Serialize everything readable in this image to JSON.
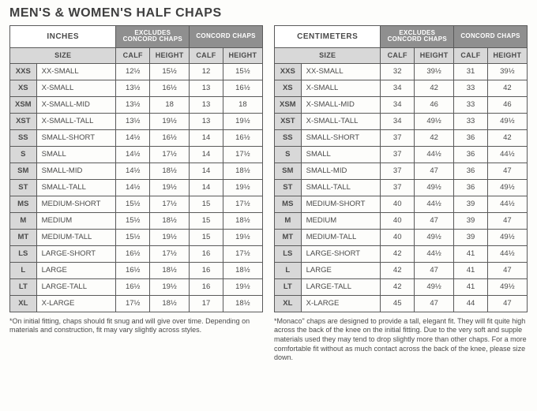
{
  "title": "MEN'S & WOMEN'S HALF CHAPS",
  "tables": {
    "inches": {
      "unit": "INCHES",
      "group1": "EXCLUDES CONCORD CHAPS",
      "group2": "CONCORD CHAPS",
      "sizeLabel": "SIZE",
      "col1": "CALF",
      "col2": "HEIGHT",
      "col3": "CALF",
      "col4": "HEIGHT"
    },
    "cm": {
      "unit": "CENTIMETERS",
      "group1": "EXCLUDES CONCORD CHAPS",
      "group2": "CONCORD CHAPS",
      "sizeLabel": "SIZE",
      "col1": "CALF",
      "col2": "HEIGHT",
      "col3": "CALF",
      "col4": "HEIGHT"
    }
  },
  "rows": [
    {
      "code": "XXS",
      "label": "XX-SMALL",
      "in": [
        "12½",
        "15½",
        "12",
        "15½"
      ],
      "cm": [
        "32",
        "39½",
        "31",
        "39½"
      ]
    },
    {
      "code": "XS",
      "label": "X-SMALL",
      "in": [
        "13½",
        "16½",
        "13",
        "16½"
      ],
      "cm": [
        "34",
        "42",
        "33",
        "42"
      ]
    },
    {
      "code": "XSM",
      "label": "X-SMALL-MID",
      "in": [
        "13½",
        "18",
        "13",
        "18"
      ],
      "cm": [
        "34",
        "46",
        "33",
        "46"
      ]
    },
    {
      "code": "XST",
      "label": "X-SMALL-TALL",
      "in": [
        "13½",
        "19½",
        "13",
        "19½"
      ],
      "cm": [
        "34",
        "49½",
        "33",
        "49½"
      ]
    },
    {
      "code": "SS",
      "label": "SMALL-SHORT",
      "in": [
        "14½",
        "16½",
        "14",
        "16½"
      ],
      "cm": [
        "37",
        "42",
        "36",
        "42"
      ]
    },
    {
      "code": "S",
      "label": "SMALL",
      "in": [
        "14½",
        "17½",
        "14",
        "17½"
      ],
      "cm": [
        "37",
        "44½",
        "36",
        "44½"
      ]
    },
    {
      "code": "SM",
      "label": "SMALL-MID",
      "in": [
        "14½",
        "18½",
        "14",
        "18½"
      ],
      "cm": [
        "37",
        "47",
        "36",
        "47"
      ]
    },
    {
      "code": "ST",
      "label": "SMALL-TALL",
      "in": [
        "14½",
        "19½",
        "14",
        "19½"
      ],
      "cm": [
        "37",
        "49½",
        "36",
        "49½"
      ]
    },
    {
      "code": "MS",
      "label": "MEDIUM-SHORT",
      "in": [
        "15½",
        "17½",
        "15",
        "17½"
      ],
      "cm": [
        "40",
        "44½",
        "39",
        "44½"
      ]
    },
    {
      "code": "M",
      "label": "MEDIUM",
      "in": [
        "15½",
        "18½",
        "15",
        "18½"
      ],
      "cm": [
        "40",
        "47",
        "39",
        "47"
      ]
    },
    {
      "code": "MT",
      "label": "MEDIUM-TALL",
      "in": [
        "15½",
        "19½",
        "15",
        "19½"
      ],
      "cm": [
        "40",
        "49½",
        "39",
        "49½"
      ]
    },
    {
      "code": "LS",
      "label": "LARGE-SHORT",
      "in": [
        "16½",
        "17½",
        "16",
        "17½"
      ],
      "cm": [
        "42",
        "44½",
        "41",
        "44½"
      ]
    },
    {
      "code": "L",
      "label": "LARGE",
      "in": [
        "16½",
        "18½",
        "16",
        "18½"
      ],
      "cm": [
        "42",
        "47",
        "41",
        "47"
      ]
    },
    {
      "code": "LT",
      "label": "LARGE-TALL",
      "in": [
        "16½",
        "19½",
        "16",
        "19½"
      ],
      "cm": [
        "42",
        "49½",
        "41",
        "49½"
      ]
    },
    {
      "code": "XL",
      "label": "X-LARGE",
      "in": [
        "17½",
        "18½",
        "17",
        "18½"
      ],
      "cm": [
        "45",
        "47",
        "44",
        "47"
      ]
    }
  ],
  "footnotes": {
    "left": "*On initial fitting, chaps should fit snug and will give over time. Depending on materials and construction, fit may vary slightly across styles.",
    "right": "*Monaco\" chaps are designed to provide a tall, elegant fit. They will fit quite high across the back of the knee on the initial fitting. Due to the very soft and supple materials used they may tend to drop slightly more than other chaps. For a more comfortable fit without as much contact across the back of the knee, please size down."
  }
}
